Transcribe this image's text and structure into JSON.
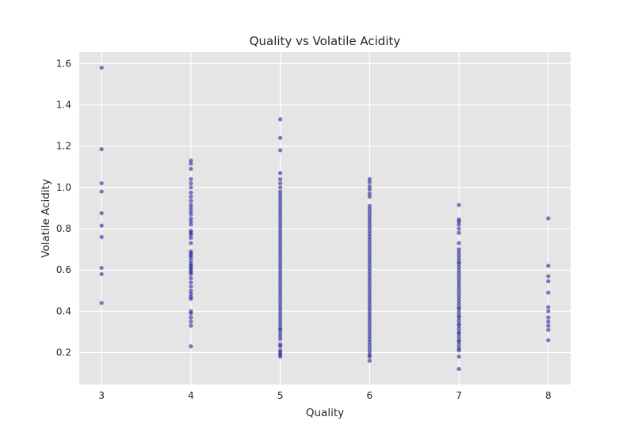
{
  "chart_data": {
    "type": "scatter",
    "title": "Quality vs Volatile Acidity",
    "xlabel": "Quality",
    "ylabel": "Volatile Acidity",
    "xlim": [
      2.75,
      8.25
    ],
    "ylim": [
      0.045,
      1.655
    ],
    "xticks": [
      3,
      4,
      5,
      6,
      7,
      8
    ],
    "yticks": [
      0.2,
      0.4,
      0.6,
      0.8,
      1.0,
      1.2,
      1.4,
      1.6
    ],
    "ytick_labels": [
      "0.2",
      "0.4",
      "0.6",
      "0.8",
      "1.0",
      "1.2",
      "1.4",
      "1.6"
    ],
    "grid": true,
    "background": "#e5e5e5",
    "marker_color": "#00008b",
    "series": [
      {
        "quality": 3,
        "volatile_acidity": [
          1.58,
          1.185,
          1.02,
          0.98,
          0.875,
          0.815,
          0.76,
          0.61,
          0.58,
          0.44
        ]
      },
      {
        "quality": 4,
        "volatile_acidity": [
          1.13,
          1.115,
          1.09,
          1.04,
          1.02,
          1.0,
          0.975,
          0.955,
          0.935,
          0.915,
          0.9,
          0.885,
          0.87,
          0.85,
          0.835,
          0.82,
          0.79,
          0.78,
          0.77,
          0.755,
          0.73,
          0.69,
          0.68,
          0.67,
          0.66,
          0.645,
          0.63,
          0.62,
          0.61,
          0.6,
          0.59,
          0.58,
          0.56,
          0.54,
          0.52,
          0.5,
          0.485,
          0.47,
          0.46,
          0.4,
          0.39,
          0.37,
          0.35,
          0.33,
          0.23
        ]
      },
      {
        "quality": 5,
        "volatile_acidity": [
          1.33,
          1.24,
          1.18,
          1.07,
          1.04,
          1.02,
          1.0,
          0.98,
          0.965,
          0.95,
          0.935,
          0.92,
          0.905,
          0.89,
          0.875,
          0.86,
          0.845,
          0.83,
          0.815,
          0.8,
          0.785,
          0.77,
          0.755,
          0.74,
          0.725,
          0.71,
          0.695,
          0.68,
          0.665,
          0.65,
          0.635,
          0.62,
          0.605,
          0.59,
          0.575,
          0.56,
          0.545,
          0.53,
          0.515,
          0.5,
          0.485,
          0.47,
          0.455,
          0.44,
          0.425,
          0.41,
          0.395,
          0.38,
          0.365,
          0.35,
          0.335,
          0.32,
          0.31,
          0.295,
          0.28,
          0.265,
          0.24,
          0.23,
          0.21,
          0.2,
          0.19,
          0.18
        ]
      },
      {
        "quality": 6,
        "volatile_acidity": [
          1.04,
          1.025,
          1.005,
          0.99,
          0.97,
          0.955,
          0.91,
          0.895,
          0.88,
          0.865,
          0.85,
          0.835,
          0.82,
          0.805,
          0.79,
          0.775,
          0.76,
          0.745,
          0.73,
          0.715,
          0.7,
          0.685,
          0.67,
          0.655,
          0.64,
          0.625,
          0.61,
          0.595,
          0.58,
          0.565,
          0.55,
          0.535,
          0.52,
          0.505,
          0.49,
          0.475,
          0.46,
          0.445,
          0.43,
          0.415,
          0.4,
          0.385,
          0.37,
          0.355,
          0.34,
          0.325,
          0.31,
          0.295,
          0.28,
          0.265,
          0.25,
          0.235,
          0.22,
          0.205,
          0.19,
          0.18,
          0.16
        ]
      },
      {
        "quality": 7,
        "volatile_acidity": [
          0.915,
          0.845,
          0.835,
          0.82,
          0.8,
          0.78,
          0.73,
          0.7,
          0.685,
          0.67,
          0.655,
          0.64,
          0.63,
          0.615,
          0.6,
          0.585,
          0.57,
          0.555,
          0.54,
          0.525,
          0.51,
          0.495,
          0.48,
          0.465,
          0.45,
          0.435,
          0.42,
          0.41,
          0.395,
          0.38,
          0.37,
          0.355,
          0.34,
          0.33,
          0.315,
          0.3,
          0.29,
          0.275,
          0.26,
          0.25,
          0.235,
          0.22,
          0.21,
          0.18,
          0.12
        ]
      },
      {
        "quality": 8,
        "volatile_acidity": [
          0.85,
          0.62,
          0.57,
          0.545,
          0.49,
          0.42,
          0.4,
          0.37,
          0.35,
          0.33,
          0.31,
          0.26
        ]
      }
    ]
  }
}
